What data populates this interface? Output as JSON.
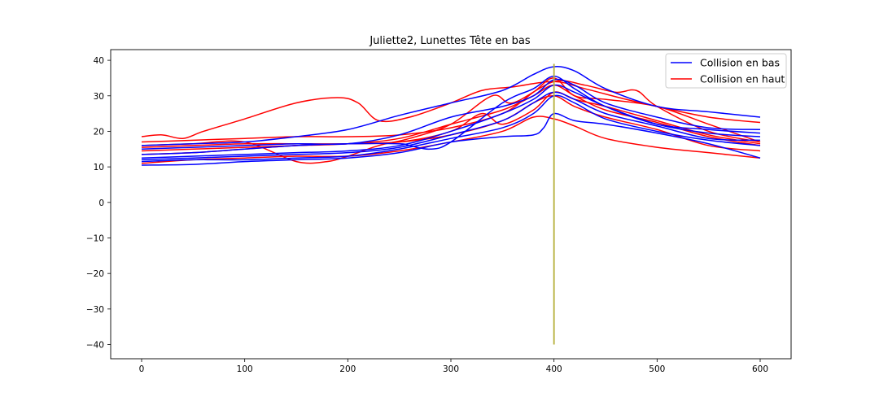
{
  "chart_data": {
    "type": "line",
    "title": "Juliette2, Lunettes Tête en bas",
    "xlabel": "",
    "ylabel": "",
    "xlim": [
      -30,
      630
    ],
    "ylim": [
      -44,
      43
    ],
    "xticks": [
      0,
      100,
      200,
      300,
      400,
      500,
      600
    ],
    "yticks": [
      -40,
      -30,
      -20,
      -10,
      0,
      10,
      20,
      30,
      40
    ],
    "grid": false,
    "legend": {
      "placement": "top-right",
      "entries": [
        {
          "label": "Collision en bas",
          "color": "#0000ff"
        },
        {
          "label": "Collision en haut",
          "color": "#ff0000"
        }
      ]
    },
    "vertical_line": {
      "x": 400,
      "y": [
        -40,
        39
      ],
      "color": "#b5b03a"
    },
    "series": [
      {
        "group": "bas",
        "color": "#0000ff",
        "x": [
          0,
          50,
          100,
          150,
          200,
          250,
          300,
          350,
          380,
          400,
          420,
          450,
          500,
          550,
          600
        ],
        "y": [
          16,
          16.5,
          17,
          18.5,
          20.5,
          24.5,
          28,
          31.5,
          36,
          38.2,
          37,
          32,
          27,
          25.5,
          24
        ]
      },
      {
        "group": "bas",
        "color": "#0000ff",
        "x": [
          0,
          50,
          100,
          150,
          200,
          250,
          300,
          350,
          380,
          400,
          420,
          450,
          500,
          550,
          600
        ],
        "y": [
          15,
          15.5,
          16,
          16.5,
          16.5,
          19,
          24,
          27,
          30,
          34.5,
          33,
          28,
          24,
          21,
          20.5
        ]
      },
      {
        "group": "bas",
        "color": "#0000ff",
        "x": [
          0,
          50,
          100,
          150,
          200,
          250,
          260,
          280,
          300,
          350,
          380,
          400,
          420,
          450,
          500,
          550,
          600
        ],
        "y": [
          13.5,
          14,
          15,
          16,
          16.5,
          16.5,
          16,
          15,
          17,
          28,
          32,
          35.5,
          32,
          27,
          22,
          20.5,
          19.5
        ]
      },
      {
        "group": "bas",
        "color": "#0000ff",
        "x": [
          0,
          50,
          100,
          150,
          200,
          250,
          300,
          350,
          380,
          400,
          420,
          450,
          500,
          550,
          600
        ],
        "y": [
          12.5,
          13,
          13.5,
          14,
          14.5,
          16,
          20,
          25,
          29,
          33,
          31,
          27,
          22,
          19.5,
          18.5
        ]
      },
      {
        "group": "bas",
        "color": "#0000ff",
        "x": [
          0,
          50,
          100,
          150,
          200,
          250,
          300,
          350,
          380,
          400,
          420,
          450,
          500,
          550,
          600
        ],
        "y": [
          12,
          12.5,
          13,
          13.5,
          14,
          15.5,
          19,
          23,
          28,
          31,
          29,
          25,
          21.5,
          18,
          17.5
        ]
      },
      {
        "group": "bas",
        "color": "#0000ff",
        "x": [
          0,
          50,
          100,
          150,
          200,
          250,
          300,
          350,
          380,
          400,
          420,
          450,
          500,
          550,
          600
        ],
        "y": [
          11.5,
          12,
          12,
          12.5,
          13,
          15,
          18,
          21,
          25,
          30,
          28,
          23.5,
          20,
          17.5,
          16
        ]
      },
      {
        "group": "bas",
        "color": "#0000ff",
        "x": [
          0,
          50,
          100,
          150,
          200,
          250,
          300,
          350,
          380,
          390,
          400,
          420,
          450,
          500,
          550,
          600
        ],
        "y": [
          10.5,
          10.7,
          11.5,
          12,
          12.5,
          14,
          17,
          18.5,
          19,
          21,
          25,
          23,
          22,
          19.5,
          16.5,
          12.5
        ]
      },
      {
        "group": "haut",
        "color": "#ff0000",
        "x": [
          0,
          20,
          40,
          60,
          100,
          150,
          190,
          210,
          230,
          260,
          300,
          330,
          360,
          400,
          430,
          470,
          500,
          550,
          600
        ],
        "y": [
          18.5,
          19,
          18,
          20,
          23.5,
          28,
          29.5,
          28,
          23,
          24,
          28,
          31.5,
          32.5,
          34,
          32,
          29,
          27,
          24,
          22.5
        ]
      },
      {
        "group": "haut",
        "color": "#ff0000",
        "x": [
          0,
          50,
          100,
          150,
          200,
          250,
          300,
          350,
          380,
          400,
          420,
          450,
          500,
          550,
          600
        ],
        "y": [
          17,
          17.5,
          18,
          18.5,
          18.5,
          19,
          21,
          25,
          31,
          35,
          30,
          29,
          27,
          22,
          17
        ]
      },
      {
        "group": "haut",
        "color": "#ff0000",
        "x": [
          0,
          50,
          100,
          150,
          180,
          200,
          230,
          260,
          300,
          340,
          360,
          400,
          430,
          460,
          480,
          500,
          550,
          600
        ],
        "y": [
          16,
          16.5,
          17,
          11.5,
          11.5,
          13,
          16,
          18,
          22,
          30,
          28,
          34,
          33,
          31,
          31.5,
          27,
          20,
          17
        ]
      },
      {
        "group": "haut",
        "color": "#ff0000",
        "x": [
          0,
          50,
          100,
          150,
          200,
          250,
          300,
          330,
          350,
          380,
          400,
          420,
          450,
          500,
          550,
          600
        ],
        "y": [
          15.5,
          16,
          16.5,
          16.5,
          16.5,
          17,
          20,
          25,
          22,
          26,
          31,
          29,
          27,
          23,
          19,
          16.5
        ]
      },
      {
        "group": "haut",
        "color": "#ff0000",
        "x": [
          0,
          50,
          100,
          150,
          200,
          250,
          300,
          350,
          380,
          400,
          420,
          450,
          500,
          550,
          600
        ],
        "y": [
          14.5,
          15,
          15.5,
          16,
          16.5,
          18,
          22,
          26,
          30,
          33,
          30,
          26,
          22.5,
          18.5,
          16
        ]
      },
      {
        "group": "haut",
        "color": "#ff0000",
        "x": [
          0,
          50,
          100,
          150,
          200,
          250,
          300,
          350,
          380,
          400,
          420,
          450,
          500,
          550,
          600
        ],
        "y": [
          13.5,
          14,
          15,
          16,
          16.5,
          17,
          19,
          23,
          28,
          30,
          27,
          24,
          20.5,
          16,
          14.5
        ]
      },
      {
        "group": "haut",
        "color": "#ff0000",
        "x": [
          0,
          50,
          100,
          150,
          200,
          250,
          300,
          350,
          380,
          400,
          420,
          450,
          500,
          550,
          600
        ],
        "y": [
          11,
          12,
          12.5,
          13,
          13,
          14.5,
          17,
          20,
          24,
          23.5,
          21.5,
          18,
          15.5,
          14,
          12.5
        ]
      }
    ]
  }
}
